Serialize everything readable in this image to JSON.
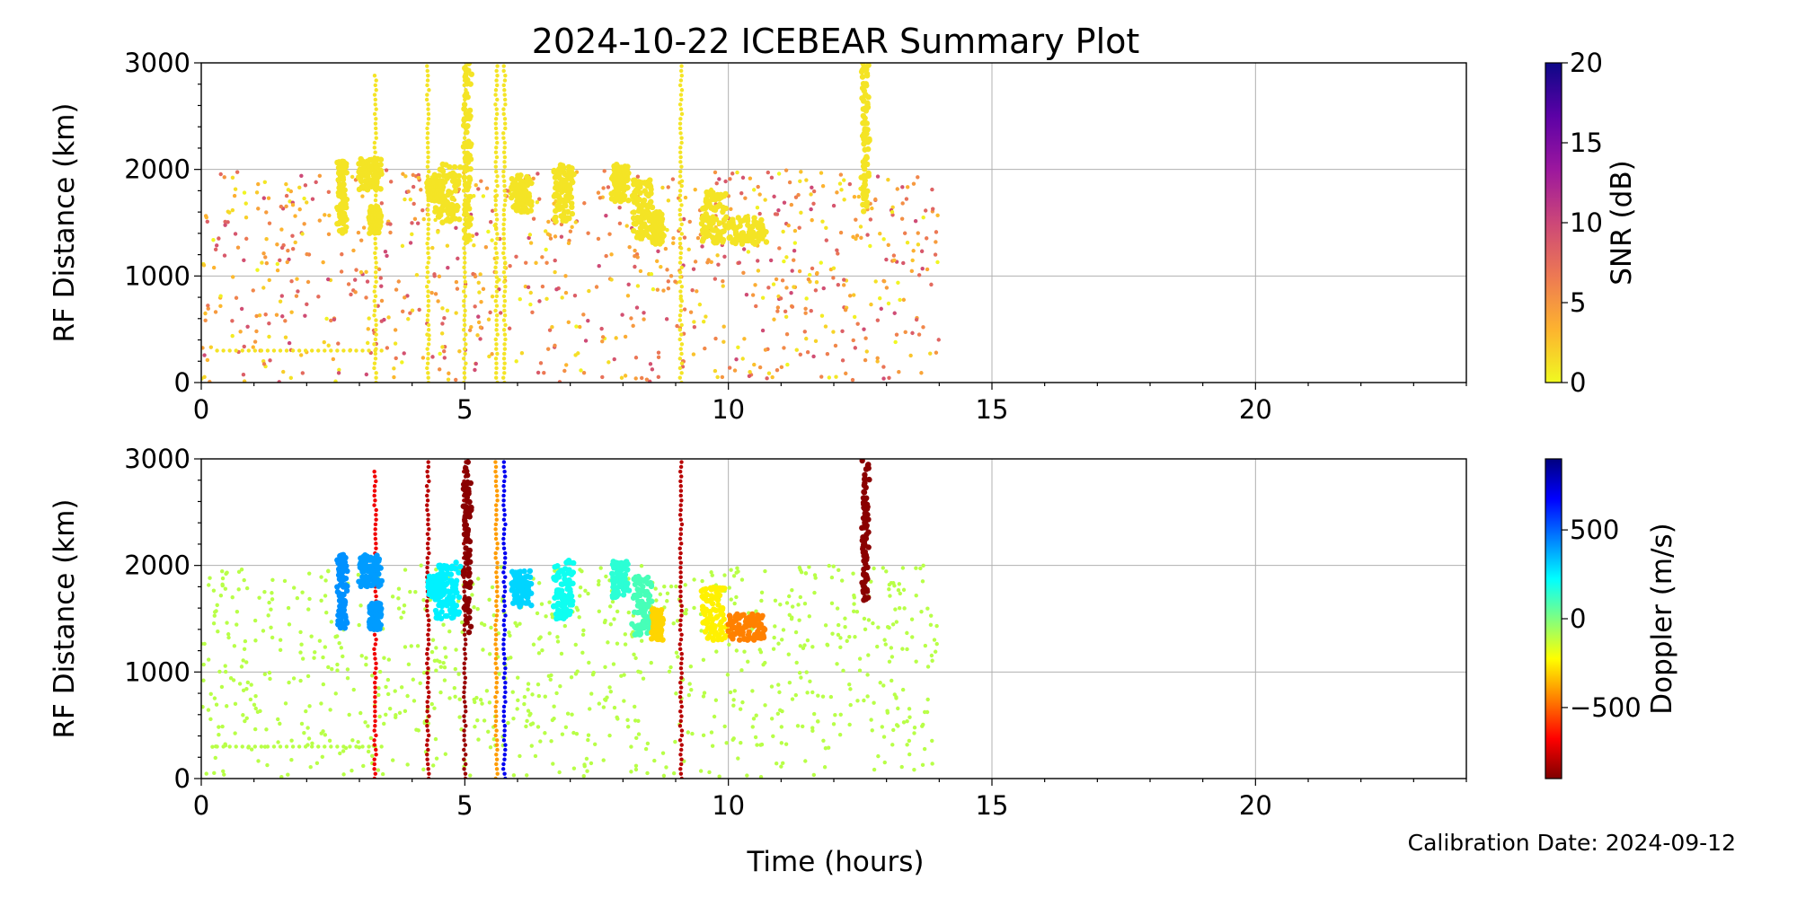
{
  "chart_data": [
    {
      "type": "scatter",
      "panel": "top",
      "title": "2024-10-22 ICEBEAR Summary Plot",
      "xlabel": "",
      "ylabel": "RF Distance (km)",
      "xlim": [
        0,
        24
      ],
      "ylim": [
        0,
        3000
      ],
      "xticks": [
        "0",
        "5",
        "10",
        "15",
        "20"
      ],
      "yticks": [
        "0",
        "1000",
        "2000",
        "3000"
      ],
      "grid": true,
      "color_by": "SNR (dB)",
      "colorbar": {
        "label": "SNR (dB)",
        "range": [
          0,
          20
        ],
        "ticks": [
          "0",
          "5",
          "10",
          "15",
          "20"
        ],
        "colormap": "plasma_r",
        "stops": [
          "#f0f921",
          "#fdb32f",
          "#ed7953",
          "#cc4778",
          "#9c179e",
          "#5c01a6",
          "#0d0887"
        ]
      },
      "clusters": [
        {
          "t": [
            2.6,
            2.75
          ],
          "r": [
            1400,
            2100
          ],
          "v": 1
        },
        {
          "t": [
            3.0,
            3.4
          ],
          "r": [
            1800,
            2100
          ],
          "v": 1
        },
        {
          "t": [
            3.2,
            3.4
          ],
          "r": [
            1400,
            1650
          ],
          "v": 1
        },
        {
          "t": [
            4.3,
            4.6
          ],
          "r": [
            1700,
            1900
          ],
          "v": 1
        },
        {
          "t": [
            4.45,
            4.9
          ],
          "r": [
            1500,
            2050
          ],
          "v": 1
        },
        {
          "t": [
            5.0,
            5.1
          ],
          "r": [
            1300,
            3000
          ],
          "v": 1
        },
        {
          "t": [
            5.9,
            6.25
          ],
          "r": [
            1600,
            1950
          ],
          "v": 1
        },
        {
          "t": [
            6.7,
            7.05
          ],
          "r": [
            1500,
            2050
          ],
          "v": 1
        },
        {
          "t": [
            7.8,
            8.1
          ],
          "r": [
            1700,
            2050
          ],
          "v": 1
        },
        {
          "t": [
            8.2,
            8.55
          ],
          "r": [
            1350,
            1900
          ],
          "v": 1
        },
        {
          "t": [
            8.55,
            8.75
          ],
          "r": [
            1300,
            1600
          ],
          "v": 1
        },
        {
          "t": [
            9.5,
            9.95
          ],
          "r": [
            1300,
            1800
          ],
          "v": 1
        },
        {
          "t": [
            10.0,
            10.7
          ],
          "r": [
            1300,
            1550
          ],
          "v": 1
        },
        {
          "t": [
            12.55,
            12.65
          ],
          "r": [
            1600,
            3000
          ],
          "v": 1
        }
      ],
      "vertical_streaks": [
        {
          "t": 3.3,
          "r": [
            0,
            2900
          ],
          "v": 1
        },
        {
          "t": 4.3,
          "r": [
            0,
            3000
          ],
          "v": 1
        },
        {
          "t": 5.0,
          "r": [
            0,
            3000
          ],
          "v": 1
        },
        {
          "t": 5.6,
          "r": [
            0,
            3000
          ],
          "v": 1
        },
        {
          "t": 5.75,
          "r": [
            0,
            3000
          ],
          "v": 1
        },
        {
          "t": 9.1,
          "r": [
            0,
            3000
          ],
          "v": 1
        }
      ],
      "background_scatter": {
        "t": [
          0,
          14
        ],
        "r": [
          0,
          2000
        ],
        "v": [
          0,
          10
        ]
      },
      "horizontal_band": {
        "t": [
          0.3,
          3.5
        ],
        "r": 300,
        "v": 1
      }
    },
    {
      "type": "scatter",
      "panel": "bottom",
      "title": "",
      "xlabel": "Time (hours)",
      "ylabel": "RF Distance (km)",
      "xlim": [
        0,
        24
      ],
      "ylim": [
        0,
        3000
      ],
      "xticks": [
        "0",
        "5",
        "10",
        "15",
        "20"
      ],
      "yticks": [
        "0",
        "1000",
        "2000",
        "3000"
      ],
      "grid": true,
      "color_by": "Doppler (m/s)",
      "colorbar": {
        "label": "Doppler (m/s)",
        "range": [
          -900,
          900
        ],
        "ticks": [
          {
            "value": -500,
            "text": "−500"
          },
          {
            "value": 0,
            "text": "0"
          },
          {
            "value": 500,
            "text": "500"
          }
        ],
        "colormap": "jet_r",
        "stops": [
          "#7f0000",
          "#ff0000",
          "#ff8000",
          "#ffff00",
          "#80ff80",
          "#00ffff",
          "#0080ff",
          "#0000ff",
          "#00007f"
        ]
      },
      "clusters": [
        {
          "t": [
            2.6,
            2.75
          ],
          "r": [
            1400,
            2100
          ],
          "v": 420
        },
        {
          "t": [
            3.0,
            3.4
          ],
          "r": [
            1800,
            2100
          ],
          "v": 400
        },
        {
          "t": [
            3.2,
            3.4
          ],
          "r": [
            1400,
            1650
          ],
          "v": 400
        },
        {
          "t": [
            4.3,
            4.6
          ],
          "r": [
            1700,
            1900
          ],
          "v": 250
        },
        {
          "t": [
            4.45,
            4.9
          ],
          "r": [
            1500,
            2050
          ],
          "v": 250
        },
        {
          "t": [
            5.0,
            5.1
          ],
          "r": [
            1300,
            3000
          ],
          "v": -880
        },
        {
          "t": [
            5.9,
            6.25
          ],
          "r": [
            1600,
            1950
          ],
          "v": 300
        },
        {
          "t": [
            6.7,
            7.05
          ],
          "r": [
            1500,
            2050
          ],
          "v": 200
        },
        {
          "t": [
            7.8,
            8.1
          ],
          "r": [
            1700,
            2050
          ],
          "v": 150
        },
        {
          "t": [
            8.2,
            8.55
          ],
          "r": [
            1350,
            1900
          ],
          "v": 100
        },
        {
          "t": [
            8.55,
            8.75
          ],
          "r": [
            1300,
            1600
          ],
          "v": -300
        },
        {
          "t": [
            9.5,
            9.95
          ],
          "r": [
            1300,
            1800
          ],
          "v": -250
        },
        {
          "t": [
            10.0,
            10.7
          ],
          "r": [
            1300,
            1550
          ],
          "v": -450
        },
        {
          "t": [
            12.55,
            12.65
          ],
          "r": [
            1600,
            3000
          ],
          "v": -880
        }
      ],
      "vertical_streaks": [
        {
          "t": 3.3,
          "r": [
            0,
            2900
          ],
          "v": -700
        },
        {
          "t": 4.3,
          "r": [
            0,
            3000
          ],
          "v": -800
        },
        {
          "t": 5.0,
          "r": [
            0,
            3000
          ],
          "v": -850
        },
        {
          "t": 5.6,
          "r": [
            0,
            3000
          ],
          "v": -400
        },
        {
          "t": 5.75,
          "r": [
            0,
            3000
          ],
          "v": 700
        },
        {
          "t": 9.1,
          "r": [
            0,
            3000
          ],
          "v": -800
        }
      ],
      "background_scatter": {
        "t": [
          0,
          14
        ],
        "r": [
          0,
          2000
        ],
        "v": [
          -100,
          -100
        ]
      },
      "horizontal_band": {
        "t": [
          0.3,
          3.5
        ],
        "r": 300,
        "v": -100
      }
    }
  ],
  "footer": {
    "calibration": "Calibration Date: 2024-09-12"
  }
}
